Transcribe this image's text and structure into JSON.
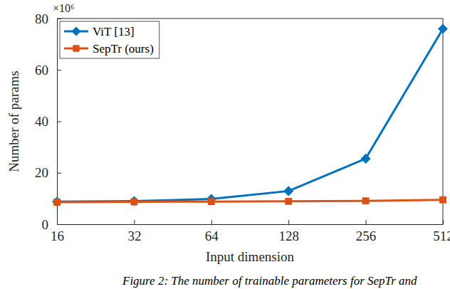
{
  "chart_data": {
    "type": "line",
    "x_label": "Input dimension",
    "y_label": "Number of params",
    "y_multiplier": "×10⁶",
    "caption": "Figure 2: The number of trainable parameters for SepTr and",
    "x": [
      16,
      32,
      64,
      128,
      256,
      512
    ],
    "series": [
      {
        "name": "ViT [13]",
        "color": "#0072bd",
        "marker": "diamond",
        "line_style": "solid",
        "values": [
          8.8,
          9.0,
          9.8,
          12.9,
          25.5,
          76
        ]
      },
      {
        "name": "SepTr (ours)",
        "color": "#d95319",
        "marker": "square",
        "line_style": "solid",
        "values": [
          8.6,
          8.7,
          8.8,
          8.9,
          9.1,
          9.5
        ]
      }
    ],
    "log": "x",
    "xlim": [
      16,
      512
    ],
    "xticks": [
      16,
      32,
      64,
      128,
      256,
      512
    ],
    "ylim": [
      0,
      80
    ],
    "yticks": [
      0,
      20,
      40,
      60,
      80
    ],
    "grid": false,
    "legend": "top-left"
  }
}
